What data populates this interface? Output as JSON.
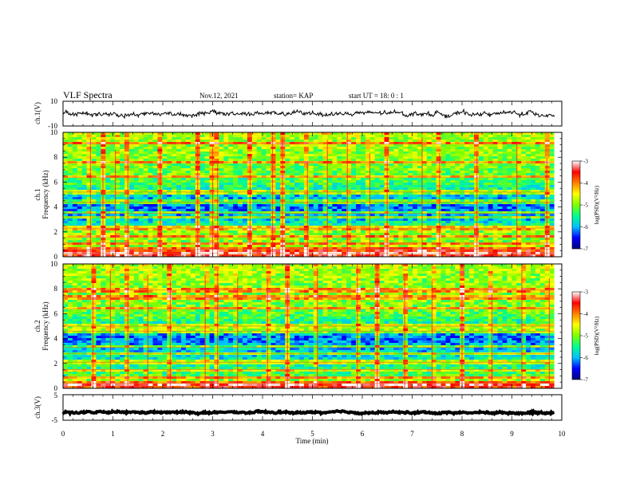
{
  "header": {
    "title": "VLF Spectra",
    "date": "Nov.12, 2021",
    "station": "station= KAP",
    "start": "start  UT  =   18: 0  : 1"
  },
  "chart_data": [
    {
      "id": "ch1-waveform",
      "type": "line",
      "ylabel": "ch.1(V)",
      "ylim": [
        -10,
        10
      ],
      "yticks": [
        "10",
        "-10"
      ],
      "xlim": [
        0,
        10
      ],
      "data_end_min": 9.85,
      "mean": 0,
      "noise_amplitude": 2.6,
      "line_color": "#000000"
    },
    {
      "id": "ch1-spectrogram",
      "type": "heatmap",
      "ylabel": "Frequency (kHz)",
      "channel_label": "ch.1",
      "ylim": [
        0,
        10
      ],
      "yticks": [
        "0",
        "2",
        "4",
        "6",
        "8",
        "10"
      ],
      "xlim": [
        0,
        10
      ],
      "data_end_min": 9.85,
      "colorbar": {
        "range": [
          -7,
          -3
        ],
        "ticks": [
          "-3",
          "-4",
          "-5",
          "-6",
          "-7"
        ],
        "label": "log(PSD)(V²/Hz)",
        "colors": [
          "#000080",
          "#0000ff",
          "#00c0ff",
          "#00ff90",
          "#7fff00",
          "#ffff00",
          "#ff8000",
          "#ff0000",
          "#ffffff"
        ]
      },
      "profile_freq_khz": [
        0,
        0.5,
        1.0,
        2.0,
        3.0,
        4.0,
        5.0,
        6.0,
        7.0,
        8.0,
        9.0,
        10.0
      ],
      "profile_log_psd": [
        -3.3,
        -4.6,
        -5.0,
        -4.95,
        -5.9,
        -6.2,
        -5.85,
        -5.3,
        -5.1,
        -5.0,
        -4.9,
        -4.75
      ],
      "tone_lines_khz": [
        0.3,
        0.6,
        1.1,
        1.6,
        2.3,
        3.2,
        3.5,
        4.4,
        5.2,
        6.4,
        7.6,
        9.1
      ],
      "sferic_times_min": [
        0.55,
        0.8,
        1.05,
        1.3,
        1.95,
        2.7,
        3.0,
        3.1,
        3.75,
        4.2,
        4.4,
        4.9,
        5.3,
        5.7,
        6.15,
        6.5,
        7.2,
        7.55,
        8.3,
        9.1,
        9.7
      ]
    },
    {
      "id": "ch2-spectrogram",
      "type": "heatmap",
      "ylabel": "Frequency (kHz)",
      "channel_label": "ch.2",
      "ylim": [
        0,
        10
      ],
      "yticks": [
        "0",
        "2",
        "4",
        "6",
        "8",
        "10"
      ],
      "xlim": [
        0,
        10
      ],
      "data_end_min": 9.85,
      "colorbar": {
        "range": [
          -7,
          -3
        ],
        "ticks": [
          "-3",
          "-4",
          "-5",
          "-6",
          "-7"
        ],
        "label": "log(PSD)(V²/Hz)",
        "colors": [
          "#000080",
          "#0000ff",
          "#00c0ff",
          "#00ff90",
          "#7fff00",
          "#ffff00",
          "#ff8000",
          "#ff0000",
          "#ffffff"
        ]
      },
      "profile_freq_khz": [
        0,
        0.5,
        1.0,
        2.0,
        3.0,
        4.0,
        5.0,
        6.0,
        7.0,
        8.0,
        9.0,
        10.0
      ],
      "profile_log_psd": [
        -3.4,
        -4.8,
        -5.2,
        -5.6,
        -5.9,
        -6.2,
        -5.6,
        -5.2,
        -5.0,
        -5.0,
        -4.9,
        -4.8
      ],
      "tone_lines_khz": [
        0.4,
        0.9,
        1.5,
        2.1,
        2.8,
        3.3,
        4.6,
        5.0,
        6.4,
        7.3,
        7.9
      ],
      "sferic_times_min": [
        0.6,
        0.95,
        1.3,
        1.7,
        2.15,
        2.85,
        3.1,
        3.5,
        4.1,
        4.5,
        5.1,
        5.9,
        6.3,
        6.85,
        7.4,
        8.0,
        8.6,
        9.2,
        9.75
      ]
    },
    {
      "id": "ch3-waveform",
      "type": "line",
      "ylabel": "ch.3(V)",
      "ylim": [
        -5,
        5
      ],
      "yticks": [
        "5",
        "-5"
      ],
      "xlim": [
        0,
        10
      ],
      "data_end_min": 9.85,
      "mean": -2.0,
      "noise_amplitude": 0.5,
      "line_color": "#000000"
    }
  ],
  "xaxis": {
    "label": "Time  (min)",
    "ticks": [
      "0",
      "1",
      "2",
      "3",
      "4",
      "5",
      "6",
      "7",
      "8",
      "9",
      "10"
    ]
  }
}
